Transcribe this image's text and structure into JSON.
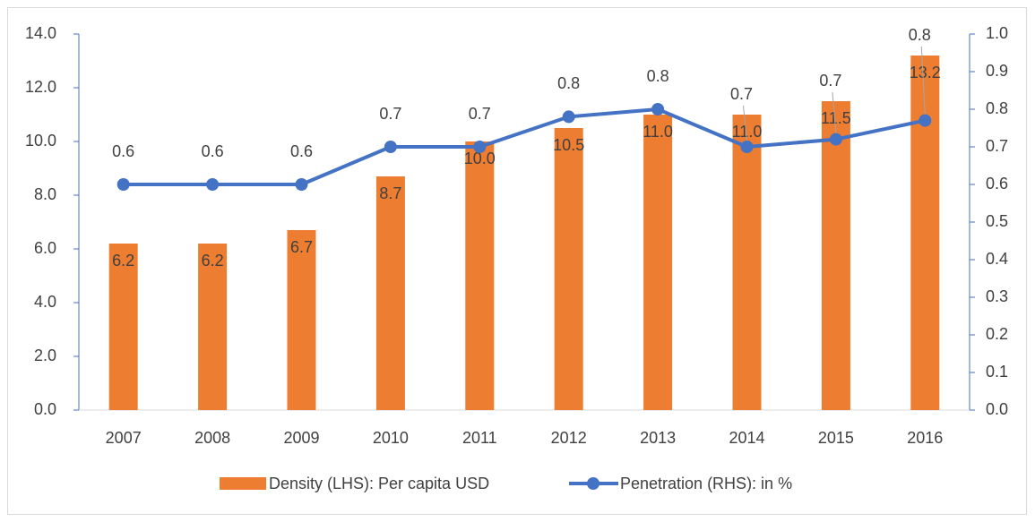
{
  "chart_data": {
    "type": "bar-line",
    "categories": [
      "2007",
      "2008",
      "2009",
      "2010",
      "2011",
      "2012",
      "2013",
      "2014",
      "2015",
      "2016"
    ],
    "series": [
      {
        "name": "Density (LHS): Per capita USD",
        "color": "#ed7d31",
        "type": "bar",
        "values": [
          6.2,
          6.2,
          6.7,
          8.7,
          10.0,
          10.5,
          11.0,
          11.0,
          11.5,
          13.2
        ],
        "value_labels": [
          "6.2",
          "6.2",
          "6.7",
          "8.7",
          "10.0",
          "10.5",
          "11.0",
          "11.0",
          "11.5",
          "13.2"
        ]
      },
      {
        "name": "Penetration (RHS): in %",
        "color": "#4472c4",
        "type": "line",
        "axis": "y2",
        "values": [
          0.6,
          0.6,
          0.6,
          0.7,
          0.7,
          0.78,
          0.8,
          0.7,
          0.72,
          0.77
        ],
        "value_labels": [
          "0.6",
          "0.6",
          "0.6",
          "0.7",
          "0.7",
          "0.8",
          "0.8",
          "0.7",
          "0.7",
          "0.8"
        ]
      }
    ],
    "ylim": [
      0,
      14
    ],
    "yticks": [
      {
        "value": 0,
        "label": "0.0"
      },
      {
        "value": 2,
        "label": "2.0"
      },
      {
        "value": 4,
        "label": "4.0"
      },
      {
        "value": 6,
        "label": "6.0"
      },
      {
        "value": 8,
        "label": "8.0"
      },
      {
        "value": 10,
        "label": "10.0"
      },
      {
        "value": 12,
        "label": "12.0"
      },
      {
        "value": 14,
        "label": "14.0"
      }
    ],
    "y2lim": [
      0,
      1
    ],
    "y2ticks": [
      {
        "value": 0,
        "label": "0.0"
      },
      {
        "value": 0.1,
        "label": "0.1"
      },
      {
        "value": 0.2,
        "label": "0.2"
      },
      {
        "value": 0.3,
        "label": "0.3"
      },
      {
        "value": 0.4,
        "label": "0.4"
      },
      {
        "value": 0.5,
        "label": "0.5"
      },
      {
        "value": 0.6,
        "label": "0.6"
      },
      {
        "value": 0.7,
        "label": "0.7"
      },
      {
        "value": 0.8,
        "label": "0.8"
      },
      {
        "value": 0.9,
        "label": "0.9"
      },
      {
        "value": 1,
        "label": "1.0"
      }
    ],
    "legend": "bottom"
  }
}
